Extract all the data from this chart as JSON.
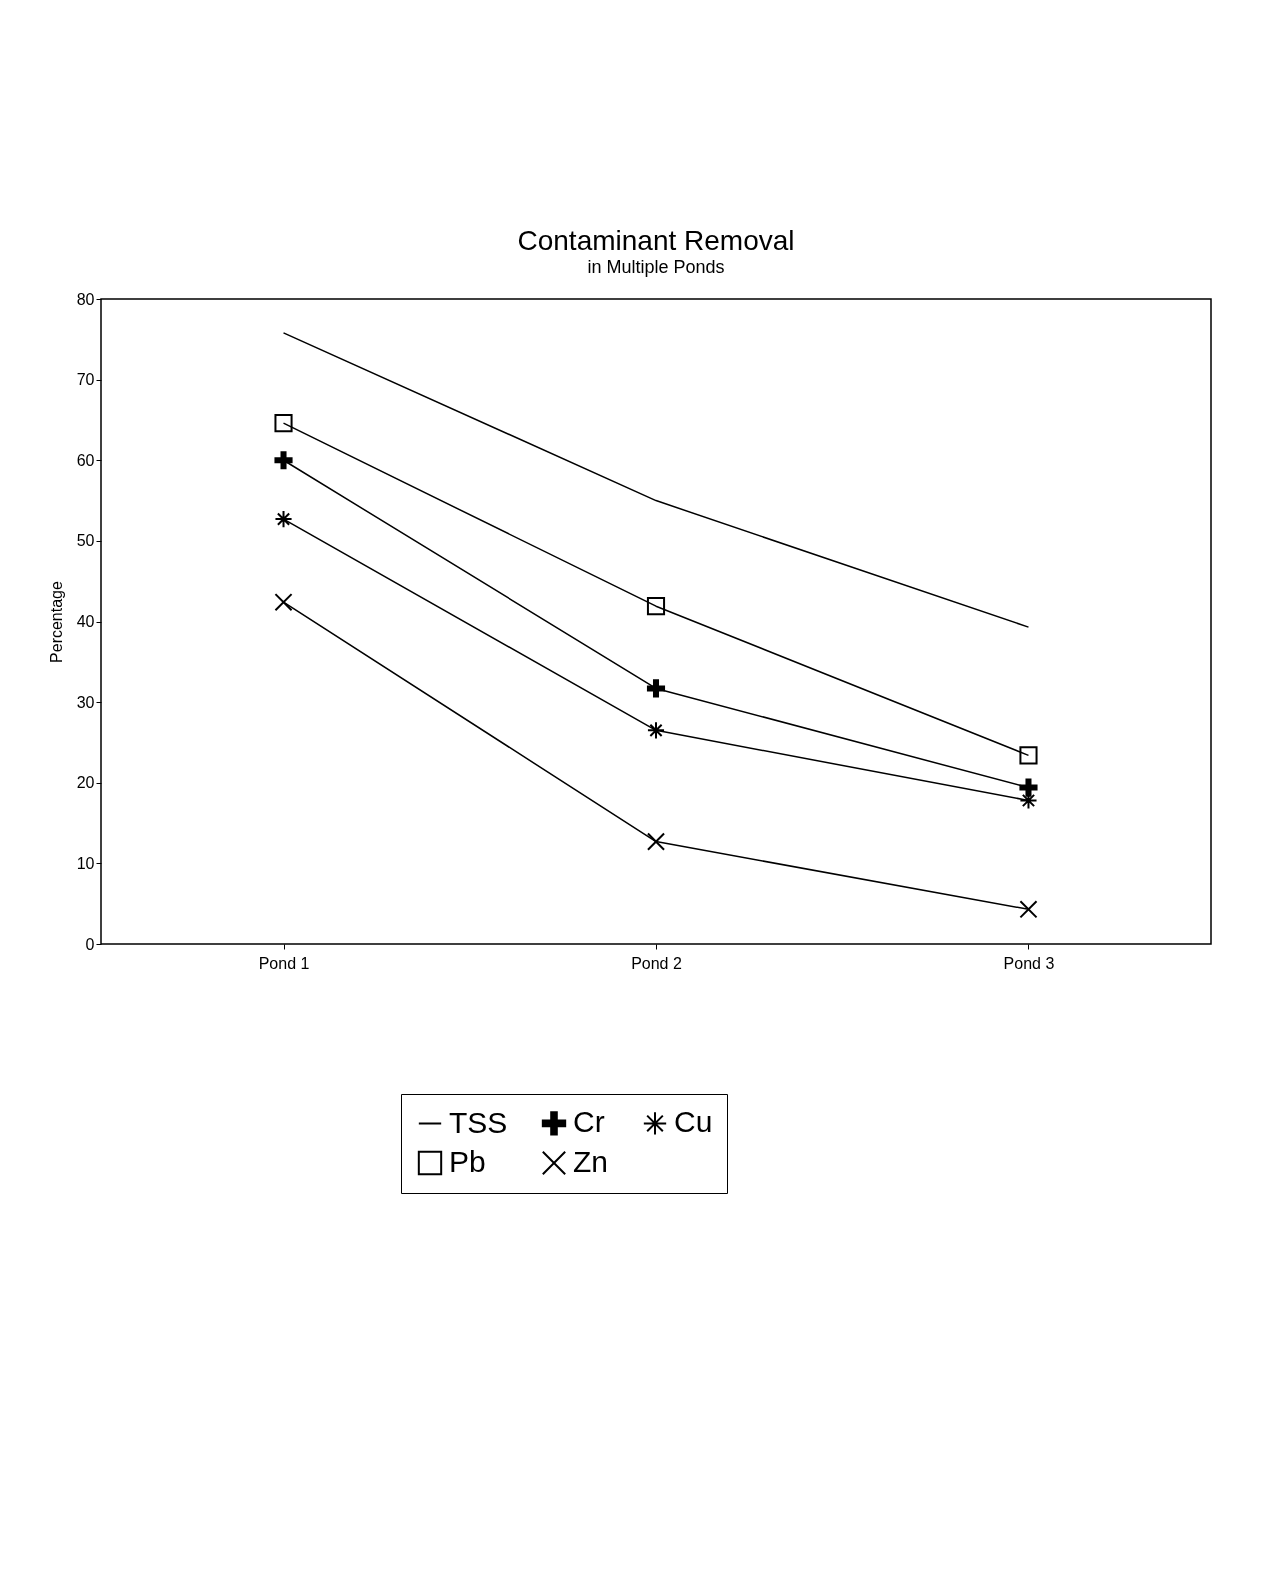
{
  "chart_data": {
    "type": "line",
    "title": "Contaminant Removal",
    "subtitle": "in Multiple Ponds",
    "ylabel": "Percentage",
    "categories": [
      "Pond 1",
      "Pond 2",
      "Pond 3"
    ],
    "series": [
      {
        "name": "TSS",
        "color": "#000000",
        "marker": "none",
        "values": [
          75.8,
          55.0,
          39.3
        ]
      },
      {
        "name": "Cr",
        "color": "#000000",
        "marker": "cross",
        "values": [
          60.0,
          31.7,
          19.4
        ]
      },
      {
        "name": "Cu",
        "color": "#000000",
        "marker": "cross",
        "values": [
          52.7,
          26.5,
          17.8
        ]
      },
      {
        "name": "Pb",
        "color": "#000000",
        "marker": "square",
        "values": [
          64.6,
          41.9,
          23.4
        ]
      },
      {
        "name": "Zn",
        "color": "#000000",
        "marker": "x",
        "values": [
          42.4,
          12.7,
          4.3
        ]
      }
    ],
    "ylim": [
      0,
      80
    ],
    "yticks": [
      0,
      10,
      20,
      30,
      40,
      50,
      60,
      70,
      80
    ],
    "grid": false,
    "legend": "bottom"
  }
}
